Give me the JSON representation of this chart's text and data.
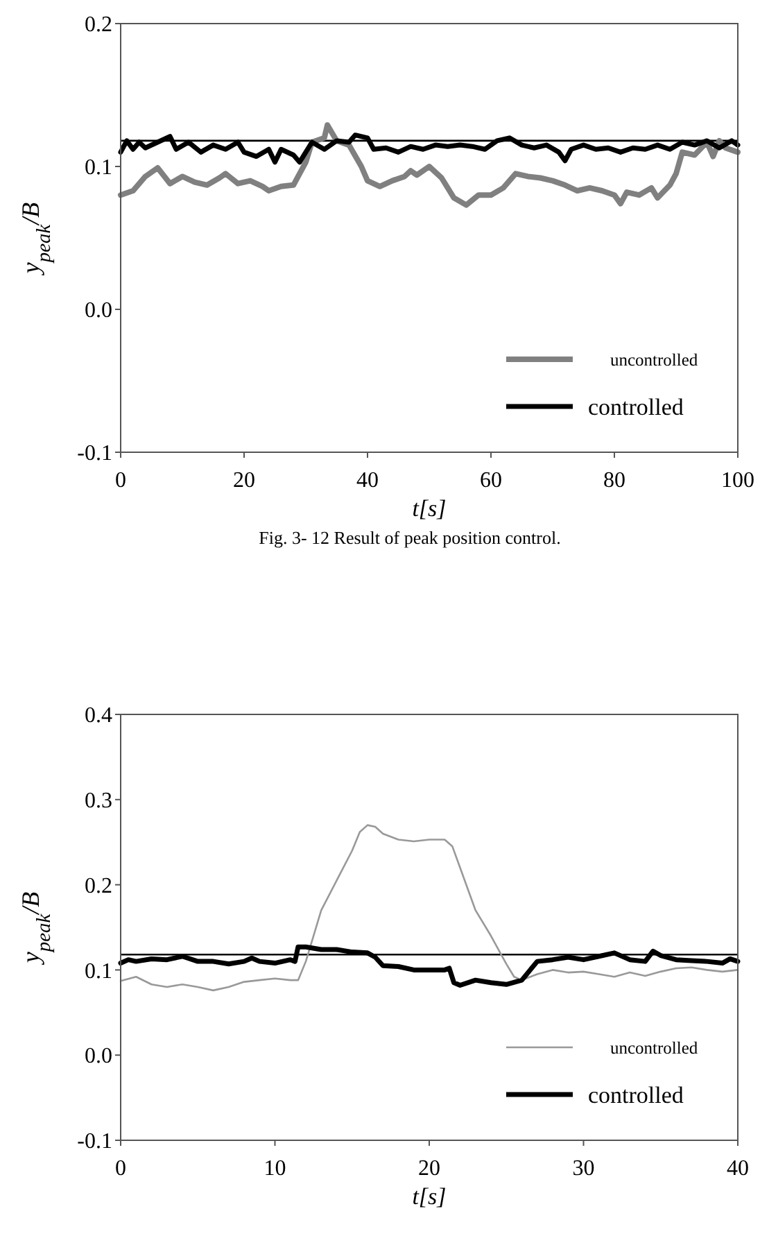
{
  "chart_data": [
    {
      "type": "line",
      "xlabel": "t[s]",
      "ylabel": "y$_{peak}$/B",
      "xlim": [
        0,
        100
      ],
      "ylim": [
        -0.1,
        0.2
      ],
      "xticks": [
        0,
        20,
        40,
        60,
        80,
        100
      ],
      "yticks": [
        {
          "value": -0.1,
          "label": "-0.1"
        },
        {
          "value": 0,
          "label": "0.0"
        },
        {
          "value": 0.1,
          "label": "0.1"
        },
        {
          "value": 0.2,
          "label": "0.2"
        }
      ],
      "legend": "bottom right",
      "grid": false,
      "marker": "none",
      "line_style": "solid",
      "ref_lines": [
        {
          "axis": "y",
          "value": 0.118,
          "color": "#000000"
        }
      ],
      "annotations": [
        "Fig. 3- 12 Result of peak position control."
      ],
      "series": [
        {
          "name": "uncontrolled",
          "color": "#808080",
          "x": [
            0,
            2,
            4,
            6,
            8,
            10,
            12,
            14,
            16,
            17,
            19,
            21,
            23,
            24,
            26,
            28,
            30,
            31,
            33,
            33.5,
            35,
            37,
            39,
            40,
            42,
            44,
            46,
            47,
            48,
            50,
            52,
            54,
            56,
            58,
            60,
            62,
            64,
            66,
            68,
            70,
            72,
            74,
            76,
            78,
            80,
            81,
            82,
            84,
            86,
            87,
            89,
            90,
            91,
            93,
            95,
            96,
            97,
            98,
            100
          ],
          "values": [
            0.08,
            0.083,
            0.093,
            0.099,
            0.088,
            0.093,
            0.089,
            0.087,
            0.092,
            0.095,
            0.088,
            0.09,
            0.086,
            0.083,
            0.086,
            0.087,
            0.103,
            0.117,
            0.12,
            0.129,
            0.118,
            0.115,
            0.1,
            0.09,
            0.086,
            0.09,
            0.093,
            0.097,
            0.094,
            0.1,
            0.092,
            0.078,
            0.073,
            0.08,
            0.08,
            0.085,
            0.095,
            0.093,
            0.092,
            0.09,
            0.087,
            0.083,
            0.085,
            0.083,
            0.08,
            0.074,
            0.082,
            0.08,
            0.085,
            0.078,
            0.087,
            0.095,
            0.11,
            0.108,
            0.117,
            0.107,
            0.118,
            0.113,
            0.11
          ]
        },
        {
          "name": "controlled",
          "color": "#000000",
          "x": [
            0,
            1,
            2,
            3,
            4,
            6,
            8,
            9,
            11,
            13,
            15,
            17,
            19,
            20,
            22,
            24,
            25,
            26,
            28,
            29,
            30,
            31,
            33,
            35,
            37,
            38,
            40,
            41,
            43,
            45,
            47,
            49,
            51,
            53,
            55,
            57,
            59,
            61,
            63,
            65,
            67,
            69,
            71,
            72,
            73,
            75,
            77,
            79,
            81,
            83,
            85,
            87,
            89,
            91,
            93,
            95,
            97,
            99,
            100
          ],
          "values": [
            0.11,
            0.118,
            0.112,
            0.117,
            0.113,
            0.117,
            0.121,
            0.112,
            0.117,
            0.11,
            0.115,
            0.112,
            0.117,
            0.11,
            0.107,
            0.112,
            0.103,
            0.112,
            0.108,
            0.103,
            0.11,
            0.117,
            0.112,
            0.118,
            0.117,
            0.122,
            0.12,
            0.112,
            0.113,
            0.11,
            0.114,
            0.112,
            0.115,
            0.114,
            0.115,
            0.114,
            0.112,
            0.118,
            0.12,
            0.115,
            0.113,
            0.115,
            0.11,
            0.104,
            0.112,
            0.115,
            0.112,
            0.113,
            0.11,
            0.113,
            0.112,
            0.115,
            0.112,
            0.117,
            0.115,
            0.118,
            0.113,
            0.118,
            0.115
          ]
        }
      ]
    },
    {
      "type": "line",
      "xlabel": "t[s]",
      "ylabel": "y$_{peak}$/B",
      "xlim": [
        0,
        40
      ],
      "ylim": [
        -0.1,
        0.4
      ],
      "xticks": [
        0,
        10,
        20,
        30,
        40
      ],
      "yticks": [
        {
          "value": -0.1,
          "label": "-0.1"
        },
        {
          "value": 0,
          "label": "0.0"
        },
        {
          "value": 0.1,
          "label": "0.1"
        },
        {
          "value": 0.2,
          "label": "0.2"
        },
        {
          "value": 0.3,
          "label": "0.3"
        },
        {
          "value": 0.4,
          "label": "0.4"
        }
      ],
      "legend": "bottom right",
      "grid": false,
      "marker": "none",
      "line_style": "solid",
      "ref_lines": [
        {
          "axis": "y",
          "value": 0.118,
          "color": "#000000"
        }
      ],
      "series": [
        {
          "name": "uncontrolled",
          "color": "#999999",
          "x": [
            0,
            1,
            2,
            3,
            4,
            5,
            6,
            7,
            8,
            9,
            10,
            11,
            11.5,
            12,
            12.5,
            13,
            14,
            15,
            15.5,
            16,
            16.5,
            17,
            18,
            19,
            20,
            21,
            21.5,
            22,
            23,
            24,
            25,
            25.5,
            26,
            27,
            28,
            29,
            30,
            31,
            32,
            33,
            34,
            35,
            36,
            37,
            38,
            39,
            40
          ],
          "values": [
            0.087,
            0.092,
            0.083,
            0.08,
            0.083,
            0.08,
            0.076,
            0.08,
            0.086,
            0.088,
            0.09,
            0.088,
            0.088,
            0.11,
            0.14,
            0.17,
            0.205,
            0.24,
            0.262,
            0.27,
            0.268,
            0.26,
            0.253,
            0.251,
            0.253,
            0.253,
            0.245,
            0.22,
            0.17,
            0.14,
            0.107,
            0.092,
            0.088,
            0.095,
            0.1,
            0.097,
            0.098,
            0.095,
            0.092,
            0.097,
            0.093,
            0.098,
            0.102,
            0.103,
            0.1,
            0.098,
            0.1
          ]
        },
        {
          "name": "controlled",
          "color": "#000000",
          "x": [
            0,
            0.5,
            1,
            2,
            3,
            4,
            5,
            6,
            7,
            8,
            8.5,
            9,
            10,
            11,
            11.3,
            11.5,
            12,
            13,
            14,
            15,
            16,
            16.5,
            17,
            18,
            19,
            20,
            21,
            21.3,
            21.6,
            22,
            23,
            24,
            25,
            26,
            27,
            28,
            29,
            30,
            31,
            32,
            33,
            34,
            34.5,
            35,
            36,
            37,
            38,
            39,
            39.5,
            40
          ],
          "values": [
            0.108,
            0.112,
            0.11,
            0.113,
            0.112,
            0.116,
            0.11,
            0.11,
            0.107,
            0.11,
            0.114,
            0.11,
            0.108,
            0.112,
            0.11,
            0.127,
            0.127,
            0.124,
            0.124,
            0.121,
            0.12,
            0.115,
            0.105,
            0.104,
            0.1,
            0.1,
            0.1,
            0.102,
            0.085,
            0.082,
            0.088,
            0.085,
            0.083,
            0.088,
            0.11,
            0.112,
            0.115,
            0.112,
            0.116,
            0.12,
            0.112,
            0.11,
            0.122,
            0.117,
            0.112,
            0.111,
            0.11,
            0.108,
            0.113,
            0.11
          ]
        }
      ]
    }
  ]
}
